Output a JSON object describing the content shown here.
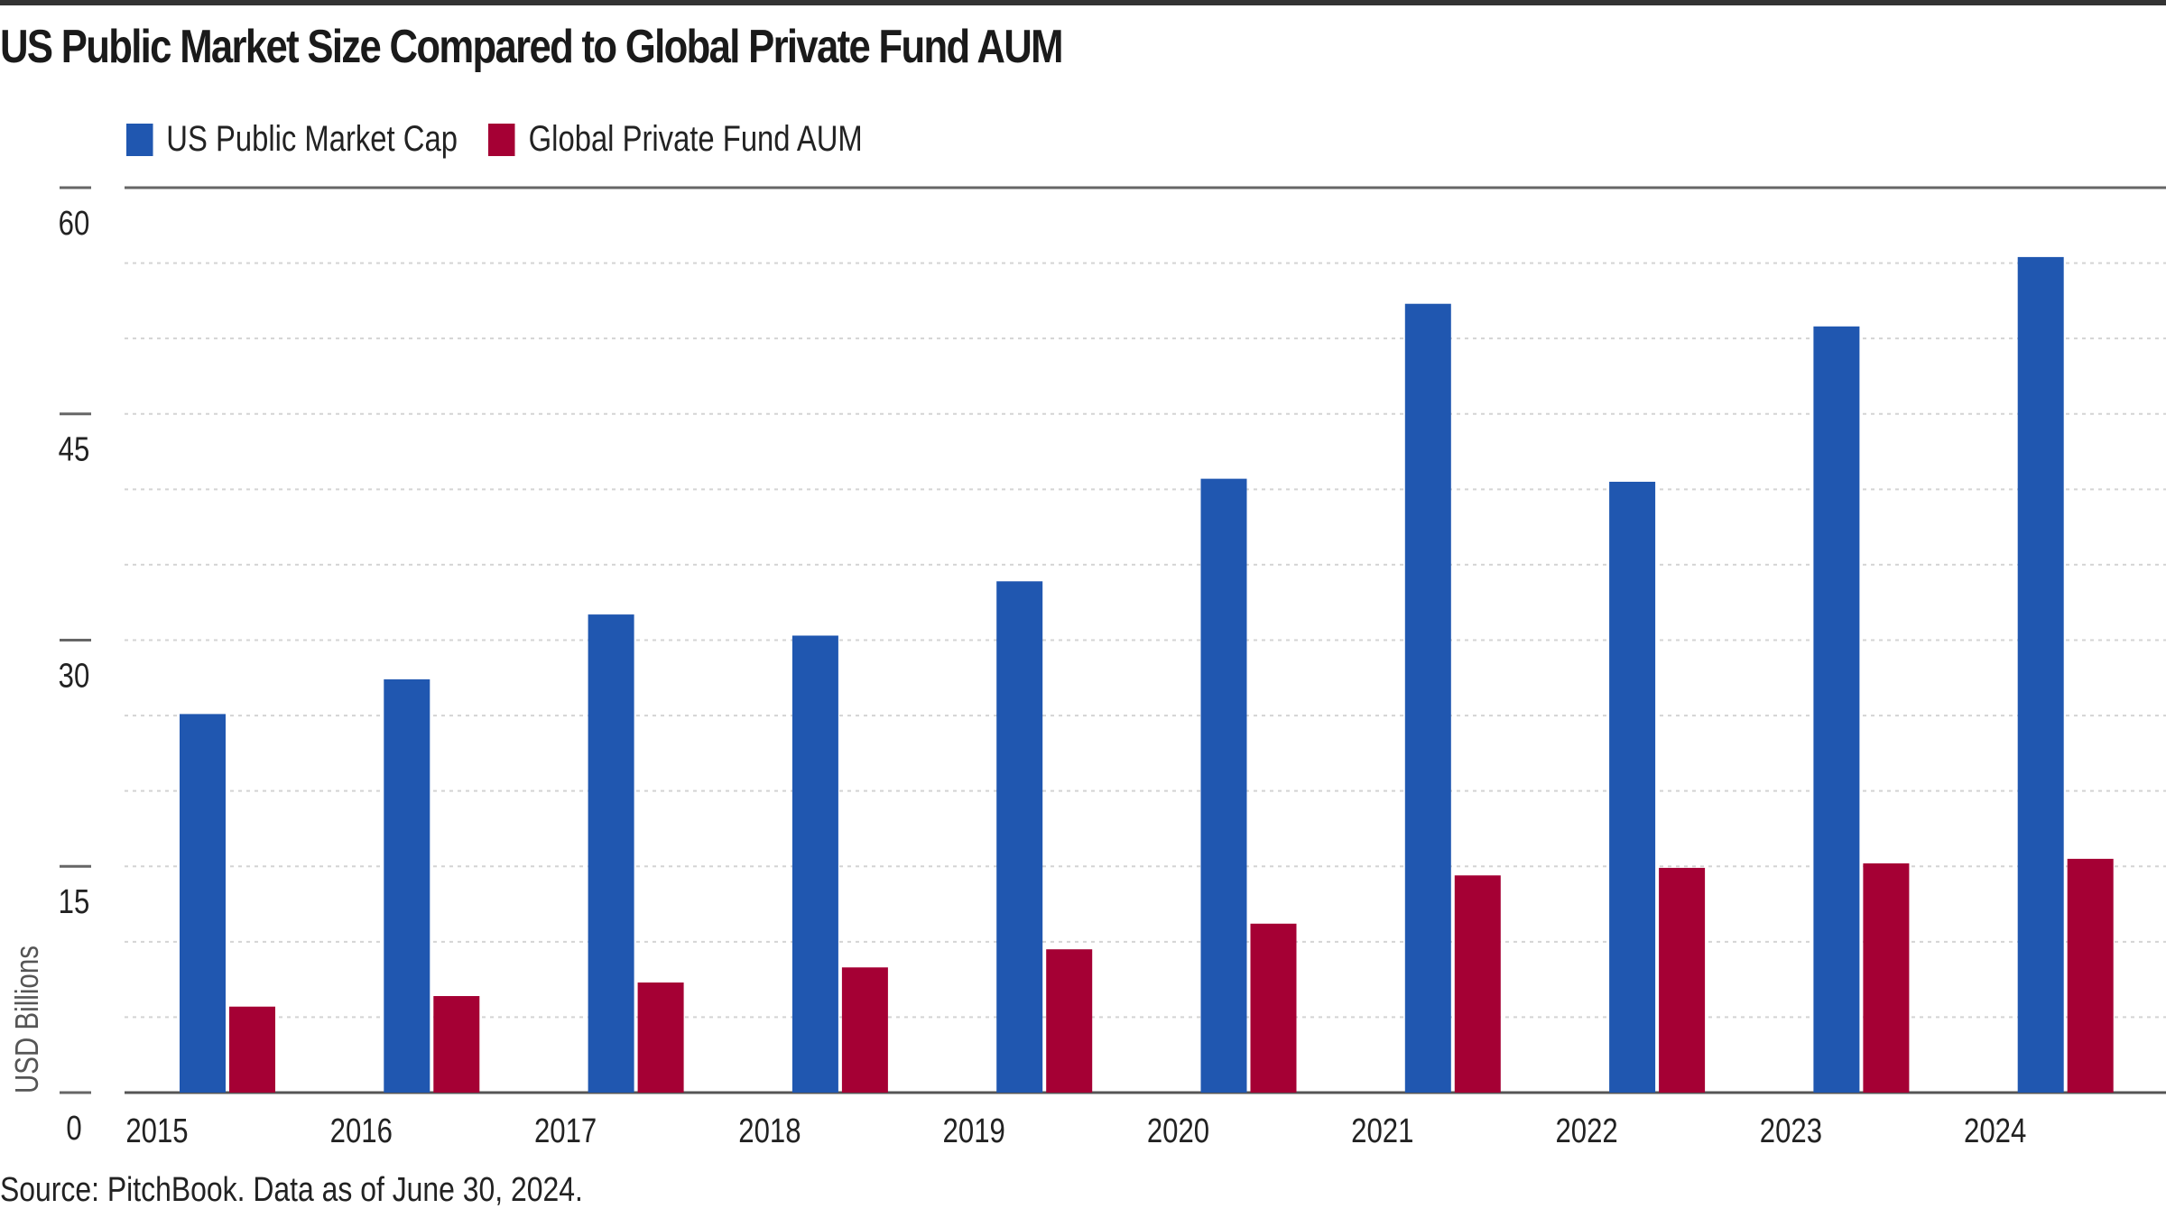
{
  "title": "US Public Market Size Compared to Global Private Fund AUM",
  "source": "Source: PitchBook. Data as of June 30, 2024.",
  "colors": {
    "us_public": "#2057b0",
    "private_fund": "#a50034"
  },
  "chart_data": {
    "type": "bar",
    "title": "US Public Market Size Compared to Global Private Fund AUM",
    "ylabel": "USD Billions",
    "xlabel": "",
    "ylim": [
      0,
      60
    ],
    "yticks": [
      0,
      15,
      30,
      45,
      60
    ],
    "grid": true,
    "legend_placement": "top-left",
    "categories": [
      "2015",
      "2016",
      "2017",
      "2018",
      "2019",
      "2020",
      "2021",
      "2022",
      "2023",
      "2024"
    ],
    "series": [
      {
        "name": "US Public Market Cap",
        "color": "#2057b0",
        "values": [
          25.1,
          27.4,
          31.7,
          30.3,
          33.9,
          40.7,
          52.3,
          40.5,
          50.8,
          55.4
        ]
      },
      {
        "name": "Global Private Fund AUM",
        "color": "#a50034",
        "values": [
          5.7,
          6.4,
          7.3,
          8.3,
          9.5,
          11.2,
          14.4,
          14.9,
          15.2,
          15.5
        ]
      }
    ]
  }
}
